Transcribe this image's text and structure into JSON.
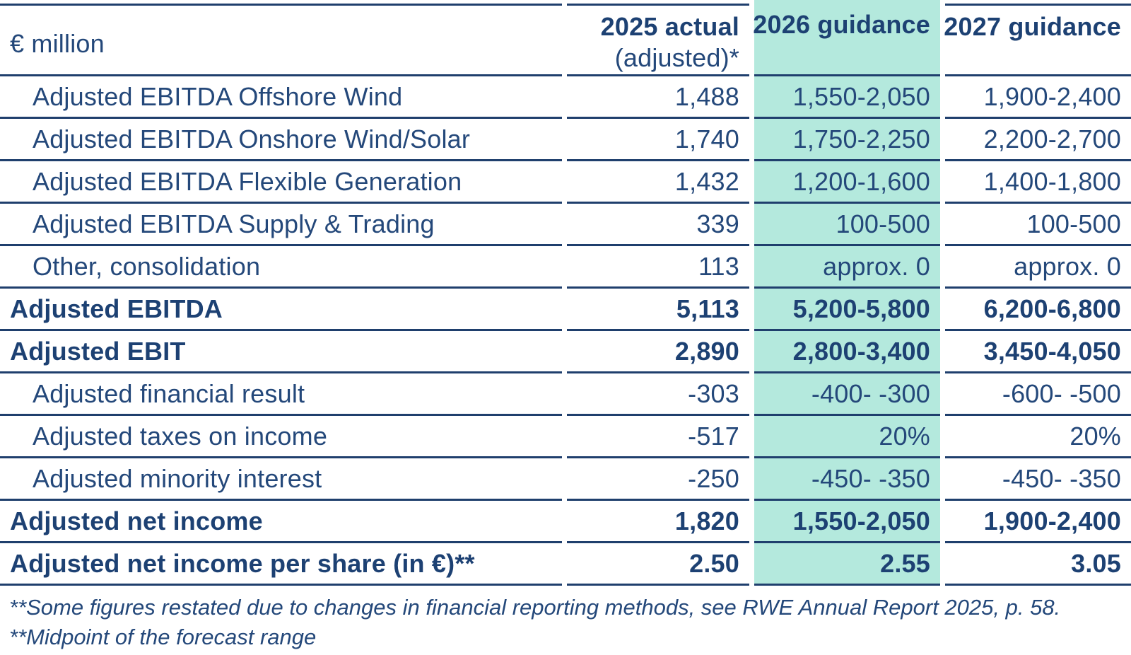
{
  "table": {
    "unit_label": "€ million",
    "columns": [
      {
        "label": "2025 actual",
        "sublabel": "(adjusted)*",
        "highlight": false
      },
      {
        "label": "2026 guidance",
        "sublabel": "",
        "highlight": true
      },
      {
        "label": "2027 guidance",
        "sublabel": "",
        "highlight": false
      }
    ],
    "rows": [
      {
        "label": "Adjusted EBITDA Offshore Wind",
        "bold": false,
        "indent": true,
        "values": [
          "1,488",
          "1,550-2,050",
          "1,900-2,400"
        ]
      },
      {
        "label": "Adjusted EBITDA Onshore Wind/Solar",
        "bold": false,
        "indent": true,
        "values": [
          "1,740",
          "1,750-2,250",
          "2,200-2,700"
        ]
      },
      {
        "label": "Adjusted EBITDA Flexible Generation",
        "bold": false,
        "indent": true,
        "values": [
          "1,432",
          "1,200-1,600",
          "1,400-1,800"
        ]
      },
      {
        "label": "Adjusted EBITDA Supply & Trading",
        "bold": false,
        "indent": true,
        "values": [
          "339",
          "100-500",
          "100-500"
        ]
      },
      {
        "label": "Other, consolidation",
        "bold": false,
        "indent": true,
        "values": [
          "113",
          "approx. 0",
          "approx. 0"
        ]
      },
      {
        "label": "Adjusted EBITDA",
        "bold": true,
        "indent": false,
        "values": [
          "5,113",
          "5,200-5,800",
          "6,200-6,800"
        ]
      },
      {
        "label": "Adjusted EBIT",
        "bold": true,
        "indent": false,
        "values": [
          "2,890",
          "2,800-3,400",
          "3,450-4,050"
        ]
      },
      {
        "label": "Adjusted financial result",
        "bold": false,
        "indent": true,
        "values": [
          "-303",
          "-400- -300",
          "-600- -500"
        ]
      },
      {
        "label": "Adjusted taxes on income",
        "bold": false,
        "indent": true,
        "values": [
          "-517",
          "20%",
          "20%"
        ]
      },
      {
        "label": "Adjusted minority interest",
        "bold": false,
        "indent": true,
        "values": [
          "-250",
          "-450- -350",
          "-450- -350"
        ]
      },
      {
        "label": "Adjusted net income",
        "bold": true,
        "indent": false,
        "values": [
          "1,820",
          "1,550-2,050",
          "1,900-2,400"
        ]
      },
      {
        "label": "Adjusted net income per share (in €)**",
        "bold": true,
        "indent": false,
        "values": [
          "2.50",
          "2.55",
          "3.05"
        ]
      }
    ],
    "footnotes": [
      "**Some figures restated due to changes in financial reporting methods, see RWE Annual Report 2025, p. 58.",
      "**Midpoint of the forecast range"
    ]
  },
  "colors": {
    "text_navy": "#24487a",
    "bold_navy": "#1d4173",
    "separator_line": "#1f3f6d",
    "highlight_teal": "#b4e9dd",
    "background": "#ffffff"
  }
}
